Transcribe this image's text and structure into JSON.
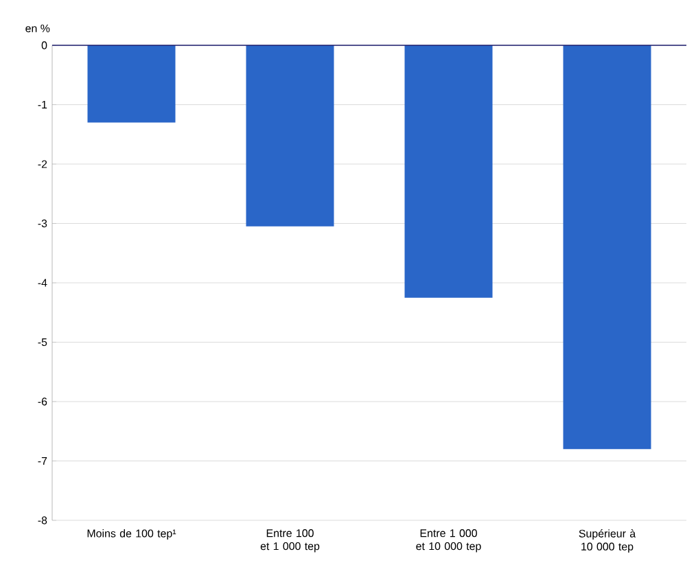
{
  "chart_data": {
    "type": "bar",
    "ylabel": "en %",
    "categories": [
      "Moins de 100 tep¹",
      "Entre 100 et 1 000 tep",
      "Entre 1 000 et 10 000 tep",
      "Supérieur à 10 000 tep"
    ],
    "values": [
      -1.3,
      -3.05,
      -4.25,
      -6.8
    ],
    "color": "#2a66c8",
    "ylim": [
      -8,
      0
    ],
    "yticks": [
      -8,
      -7,
      -6,
      -5,
      -4,
      -3,
      -2,
      -1,
      0
    ],
    "grid": "y"
  }
}
